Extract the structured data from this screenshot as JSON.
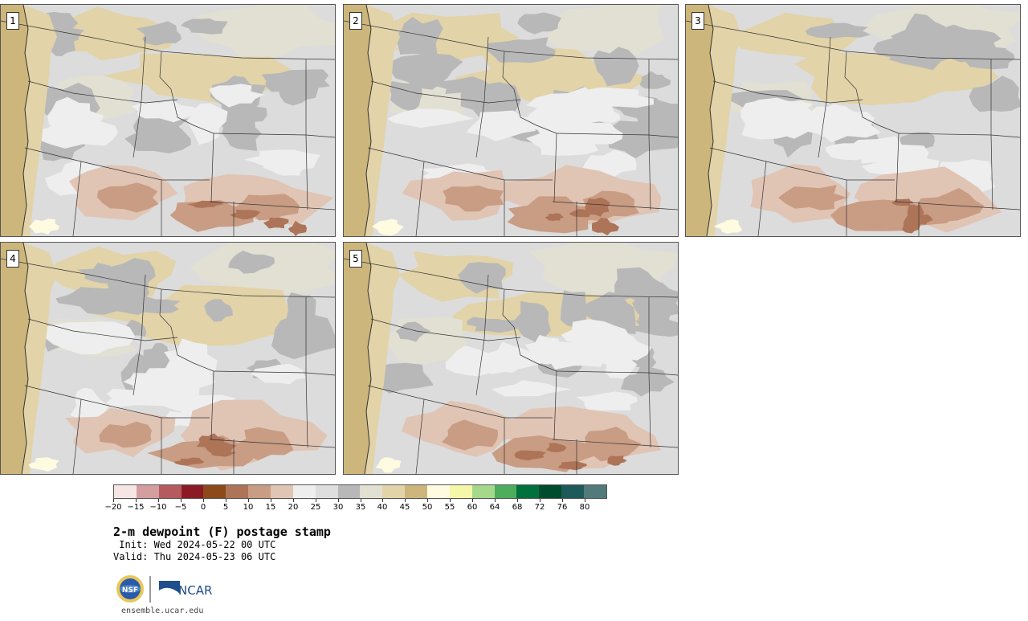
{
  "panels": [
    {
      "label": "1"
    },
    {
      "label": "2"
    },
    {
      "label": "3"
    },
    {
      "label": "4"
    },
    {
      "label": "5"
    }
  ],
  "colorbar": {
    "ticks": [
      "−20",
      "−15",
      "−10",
      "−5",
      "0",
      "5",
      "10",
      "15",
      "20",
      "25",
      "30",
      "35",
      "40",
      "45",
      "50",
      "55",
      "60",
      "64",
      "68",
      "72",
      "76",
      "80"
    ],
    "colors": [
      "#f5e5e5",
      "#d49ea0",
      "#b55a5f",
      "#8c1a24",
      "#8c4a1a",
      "#ad7458",
      "#c99c84",
      "#e0c4b4",
      "#eeeeee",
      "#dedede",
      "#b8b8b8",
      "#e2e0d2",
      "#e2d3a8",
      "#cdb67b",
      "#fffbe0",
      "#f6f6a8",
      "#a6d88c",
      "#4cad5c",
      "#00703c",
      "#004c2e",
      "#1e5a5a",
      "#527a7a"
    ]
  },
  "title": "2-m dewpoint (F) postage stamp",
  "init": " Init: Wed 2024-05-22 00 UTC",
  "valid": "Valid: Thu 2024-05-23 06 UTC",
  "logos": {
    "nsf": "NSF",
    "ncar": "NCAR"
  },
  "site": "ensemble.ucar.edu",
  "map_colors": {
    "ocean": "#cdb67b",
    "background": "#dcdcdc",
    "dark_gray": "#b8b8b8",
    "light_gray": "#eeeeee",
    "tan": "#e2d3a8",
    "pale": "#e2e0d2",
    "brown_light": "#e0c4b4",
    "brown_mid": "#c99c84",
    "brown_dark": "#ad7458",
    "border": "#333333"
  }
}
